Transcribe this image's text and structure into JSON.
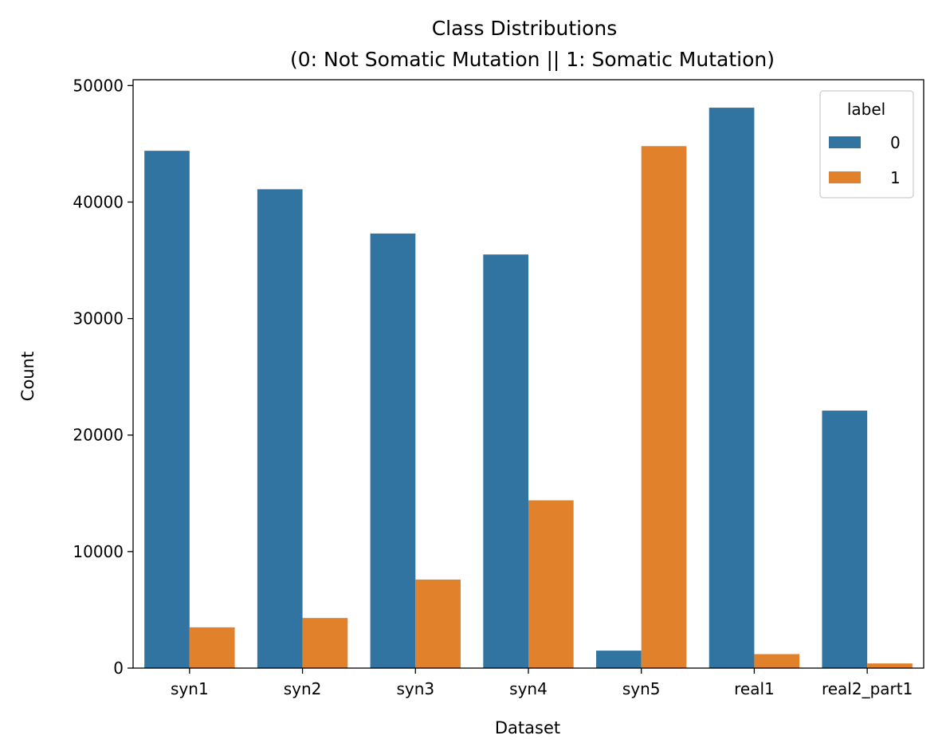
{
  "chart_data": {
    "type": "bar",
    "title": "Class Distributions",
    "subtitle": "(0: Not Somatic Mutation || 1: Somatic Mutation)",
    "xlabel": "Dataset",
    "ylabel": "Count",
    "categories": [
      "syn1",
      "syn2",
      "syn3",
      "syn4",
      "syn5",
      "real1",
      "real2_part1"
    ],
    "series": [
      {
        "name": "0",
        "color": "#3274a1",
        "values": [
          44400,
          41100,
          37300,
          35500,
          1500,
          48100,
          22100
        ]
      },
      {
        "name": "1",
        "color": "#e1812c",
        "values": [
          3500,
          4300,
          7600,
          14400,
          44800,
          1200,
          400
        ]
      }
    ],
    "ylim": [
      0,
      50500
    ],
    "yticks": [
      0,
      10000,
      20000,
      30000,
      40000,
      50000
    ],
    "legend": {
      "title": "label",
      "placement": "top-right"
    },
    "grid": false
  }
}
